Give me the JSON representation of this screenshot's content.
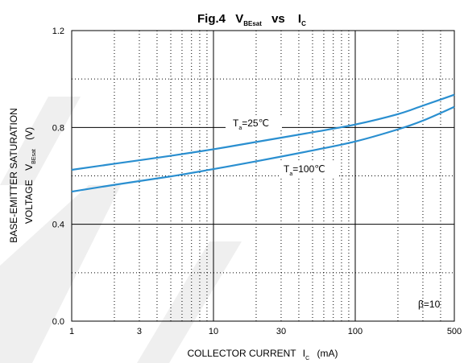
{
  "title": {
    "main": "Fig.4",
    "v": "V",
    "v_sub": "BEsat",
    "vs": "vs",
    "i": "I",
    "i_sub": "C"
  },
  "y_axis_label": {
    "line1": "BASE-EMITTER SATURATION",
    "line2_prefix": "VOLTAGE",
    "line2_v": "V",
    "line2_sub": "BEsat",
    "line2_unit": "(V)"
  },
  "x_axis_label": {
    "prefix": "COLLECTOR CURRENT",
    "i": "I",
    "i_sub": "C",
    "unit": "(mA)"
  },
  "annotation": "β=10",
  "series_labels": {
    "s25": {
      "t": "T",
      "sub": "a",
      "rest": "=25℃"
    },
    "s100": {
      "t": "T",
      "sub": "a",
      "rest": "=100℃"
    }
  },
  "colors": {
    "curve": "#2a8fd0",
    "axis": "#000000",
    "watermark": "#eeeeee"
  },
  "chart_data": {
    "type": "line",
    "x_scale": "log",
    "xlim": [
      1,
      500
    ],
    "ylim": [
      0.0,
      1.2
    ],
    "x_ticks": [
      1,
      3,
      10,
      30,
      100,
      500
    ],
    "x_tick_labels": [
      "1",
      "3",
      "10",
      "30",
      "100",
      "500"
    ],
    "y_ticks": [
      0.0,
      0.4,
      0.8,
      1.2
    ],
    "y_tick_labels": [
      "0.0",
      "0.4",
      "0.8",
      "1.2"
    ],
    "x_minor_grid": [
      2,
      3,
      4,
      5,
      6,
      7,
      8,
      9,
      20,
      30,
      40,
      50,
      60,
      70,
      80,
      90,
      200,
      300,
      400
    ],
    "y_minor_grid": [
      0.2,
      0.6,
      1.0
    ],
    "grid": true,
    "series": [
      {
        "name": "Ta=25℃",
        "x": [
          1,
          2,
          5,
          10,
          20,
          50,
          100,
          200,
          300,
          500
        ],
        "y": [
          0.625,
          0.65,
          0.683,
          0.71,
          0.74,
          0.78,
          0.812,
          0.855,
          0.89,
          0.935
        ]
      },
      {
        "name": "Ta=100℃",
        "x": [
          1,
          2,
          5,
          10,
          20,
          50,
          100,
          200,
          300,
          500
        ],
        "y": [
          0.535,
          0.563,
          0.598,
          0.628,
          0.66,
          0.705,
          0.742,
          0.792,
          0.828,
          0.885
        ]
      }
    ]
  }
}
